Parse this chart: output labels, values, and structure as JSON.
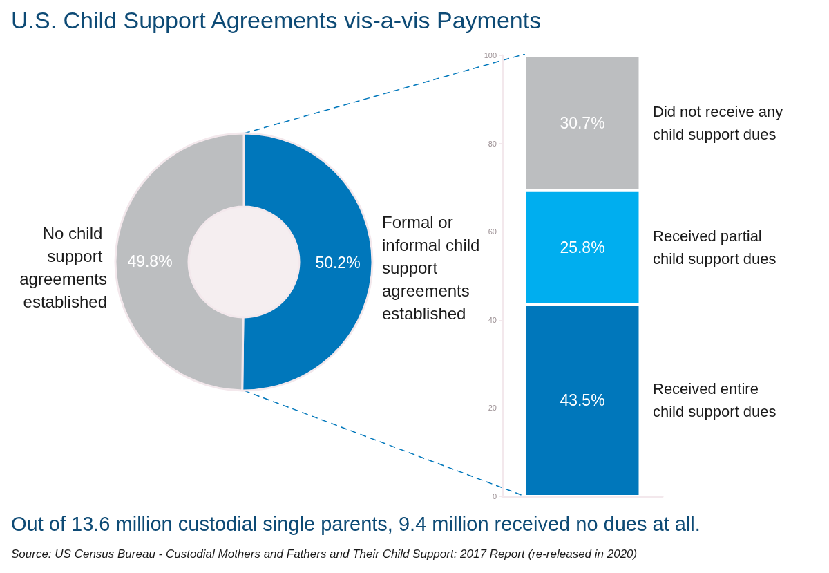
{
  "chart_data": [
    {
      "type": "donut",
      "title": "U.S. Child Support Agreements vis-a-vis Payments",
      "categories": [
        "Formal or informal child support agreements established",
        "No child support agreements established"
      ],
      "values": [
        50.2,
        49.8
      ],
      "colors": [
        "#0077bb",
        "#bcbec0"
      ],
      "value_labels": [
        "50.2%",
        "49.8%"
      ],
      "legend": false,
      "annotations": [
        "Out of 13.6 million custodial single parents, 9.4 million received no dues at all.",
        "Source: US Census Bureau - Custodial Mothers and Fathers and Their Child Support: 2017 Report (re-released in 2020)"
      ]
    },
    {
      "type": "bar",
      "stacked": true,
      "categories": [
        null
      ],
      "ylim": [
        0,
        100
      ],
      "yticks": [
        0,
        20,
        40,
        60,
        80,
        100
      ],
      "legend": false,
      "series": [
        {
          "name": "Received entire child support dues",
          "color": "#0077bb",
          "values": [
            43.5
          ],
          "value_labels": [
            "43.5%"
          ]
        },
        {
          "name": "Received partial child support dues",
          "color": "#00aeef",
          "values": [
            25.8
          ],
          "value_labels": [
            "25.8%"
          ]
        },
        {
          "name": "Did not receive any child support dues",
          "color": "#bcbec0",
          "values": [
            30.7
          ],
          "value_labels": [
            "30.7%"
          ]
        }
      ]
    }
  ]
}
